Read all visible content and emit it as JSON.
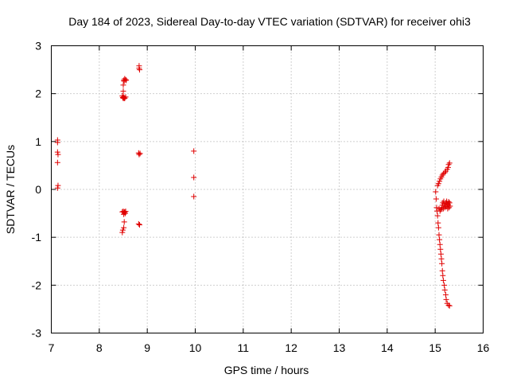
{
  "chart_data": {
    "type": "scatter",
    "title": "Day 184 of 2023, Sidereal Day-to-day VTEC variation (SDTVAR) for receiver ohi3",
    "xlabel": "GPS time / hours",
    "ylabel": "SDTVAR / TECUs",
    "xlim": [
      7,
      16
    ],
    "ylim": [
      -3,
      3
    ],
    "xticks": [
      "7",
      "8",
      "9",
      "10",
      "11",
      "12",
      "13",
      "14",
      "15",
      "16"
    ],
    "yticks": [
      "-3",
      "-2",
      "-1",
      "0",
      "1",
      "2",
      "3"
    ],
    "grid": true,
    "marker": "+",
    "colors": {
      "points": "#e00000",
      "grid": "#a0a0a0",
      "frame": "#000000"
    },
    "series": [
      {
        "name": "SDTVAR",
        "points": [
          [
            7.13,
            1.03
          ],
          [
            7.13,
            0.98
          ],
          [
            7.13,
            0.78
          ],
          [
            7.14,
            0.73
          ],
          [
            7.13,
            0.56
          ],
          [
            7.14,
            0.08
          ],
          [
            7.13,
            0.03
          ],
          [
            8.48,
            1.95
          ],
          [
            8.49,
            1.92
          ],
          [
            8.5,
            1.9
          ],
          [
            8.51,
            1.93
          ],
          [
            8.52,
            1.91
          ],
          [
            8.53,
            1.9
          ],
          [
            8.55,
            1.93
          ],
          [
            8.5,
            2.05
          ],
          [
            8.5,
            2.18
          ],
          [
            8.51,
            2.28
          ],
          [
            8.52,
            2.26
          ],
          [
            8.53,
            2.31
          ],
          [
            8.55,
            2.29
          ],
          [
            8.56,
            2.28
          ],
          [
            8.83,
            2.58
          ],
          [
            8.83,
            2.53
          ],
          [
            8.84,
            2.5
          ],
          [
            8.82,
            0.76
          ],
          [
            8.83,
            0.73
          ],
          [
            8.85,
            0.75
          ],
          [
            8.82,
            -0.72
          ],
          [
            8.84,
            -0.74
          ],
          [
            8.48,
            -0.47
          ],
          [
            8.5,
            -0.46
          ],
          [
            8.52,
            -0.48
          ],
          [
            8.53,
            -0.47
          ],
          [
            8.55,
            -0.46
          ],
          [
            8.51,
            -0.52
          ],
          [
            8.54,
            -0.5
          ],
          [
            8.52,
            -0.68
          ],
          [
            8.51,
            -0.8
          ],
          [
            8.49,
            -0.85
          ],
          [
            8.48,
            -0.9
          ],
          [
            9.97,
            0.8
          ],
          [
            9.97,
            0.25
          ],
          [
            9.97,
            -0.15
          ],
          [
            15.01,
            -0.05
          ],
          [
            15.02,
            -0.2
          ],
          [
            15.03,
            -0.38
          ],
          [
            15.04,
            -0.45
          ],
          [
            15.05,
            -0.55
          ],
          [
            15.06,
            -0.7
          ],
          [
            15.07,
            -0.8
          ],
          [
            15.08,
            -0.95
          ],
          [
            15.09,
            -1.05
          ],
          [
            15.1,
            -1.15
          ],
          [
            15.11,
            -1.25
          ],
          [
            15.12,
            -1.35
          ],
          [
            15.13,
            -1.45
          ],
          [
            15.14,
            -1.55
          ],
          [
            15.15,
            -1.7
          ],
          [
            15.16,
            -1.8
          ],
          [
            15.17,
            -1.9
          ],
          [
            15.19,
            -2.0
          ],
          [
            15.2,
            -2.1
          ],
          [
            15.22,
            -2.2
          ],
          [
            15.23,
            -2.3
          ],
          [
            15.25,
            -2.38
          ],
          [
            15.28,
            -2.42
          ],
          [
            15.3,
            -2.43
          ],
          [
            15.05,
            0.08
          ],
          [
            15.07,
            0.12
          ],
          [
            15.09,
            0.17
          ],
          [
            15.11,
            0.22
          ],
          [
            15.13,
            0.26
          ],
          [
            15.15,
            0.3
          ],
          [
            15.17,
            0.33
          ],
          [
            15.2,
            0.35
          ],
          [
            15.22,
            0.38
          ],
          [
            15.25,
            0.42
          ],
          [
            15.27,
            0.46
          ],
          [
            15.28,
            0.52
          ],
          [
            15.3,
            0.55
          ],
          [
            15.08,
            -0.4
          ],
          [
            15.1,
            -0.45
          ],
          [
            15.12,
            -0.42
          ],
          [
            15.14,
            -0.38
          ],
          [
            15.15,
            -0.33
          ],
          [
            15.16,
            -0.28
          ],
          [
            15.18,
            -0.25
          ],
          [
            15.19,
            -0.3
          ],
          [
            15.21,
            -0.33
          ],
          [
            15.22,
            -0.28
          ],
          [
            15.24,
            -0.25
          ],
          [
            15.25,
            -0.3
          ],
          [
            15.27,
            -0.32
          ],
          [
            15.28,
            -0.26
          ],
          [
            15.3,
            -0.28
          ],
          [
            15.31,
            -0.35
          ],
          [
            15.17,
            -0.4
          ],
          [
            15.2,
            -0.38
          ],
          [
            15.23,
            -0.36
          ],
          [
            15.26,
            -0.4
          ],
          [
            15.29,
            -0.38
          ]
        ]
      }
    ]
  }
}
